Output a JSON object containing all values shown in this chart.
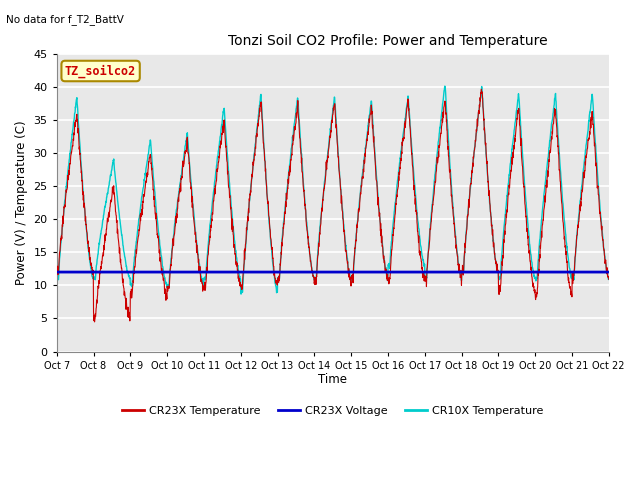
{
  "title": "Tonzi Soil CO2 Profile: Power and Temperature",
  "subtitle": "No data for f_T2_BattV",
  "ylabel": "Power (V) / Temperature (C)",
  "xlabel": "Time",
  "ylim": [
    0,
    45
  ],
  "yticks": [
    0,
    5,
    10,
    15,
    20,
    25,
    30,
    35,
    40,
    45
  ],
  "xtick_labels": [
    "Oct 7",
    "Oct 8",
    "Oct 9",
    "Oct 10",
    "Oct 11",
    "Oct 12",
    "Oct 13",
    "Oct 14",
    "Oct 15",
    "Oct 16",
    "Oct 17",
    "Oct 18",
    "Oct 19",
    "Oct 20",
    "Oct 21",
    "Oct 22"
  ],
  "legend_entries": [
    "CR23X Temperature",
    "CR23X Voltage",
    "CR10X Temperature"
  ],
  "legend_colors": [
    "#cc0000",
    "#0000cc",
    "#00cccc"
  ],
  "cr23x_voltage_value": 12.0,
  "annotation_text": "TZ_soilco2",
  "annotation_box_color": "#ffffcc",
  "annotation_box_edge": "#aa8800",
  "bg_color": "#e8e8e8",
  "grid_color": "#ffffff",
  "line_cr23x_color": "#cc0000",
  "line_cr10x_color": "#00cccc",
  "line_voltage_color": "#0000cc",
  "num_days": 15,
  "cr23x_peaks": [
    36,
    25,
    30,
    32,
    35,
    38,
    37,
    38,
    37,
    38,
    38,
    40,
    37,
    37,
    36
  ],
  "cr10x_peaks": [
    38.5,
    29,
    32,
    33,
    37,
    39,
    38.5,
    38.5,
    38,
    38.5,
    40.5,
    40,
    39,
    39,
    39
  ],
  "cr23x_mins": [
    12,
    5,
    8.5,
    9.5,
    10,
    10,
    11,
    10.5,
    11,
    11,
    11,
    12,
    9,
    8.5,
    11.5
  ],
  "cr10x_mins": [
    11,
    11,
    10,
    10,
    11,
    9,
    11,
    11,
    11,
    13,
    11,
    12,
    11,
    11,
    11
  ],
  "cr23x_extra_noise": true,
  "figsize": [
    6.4,
    4.8
  ],
  "dpi": 100
}
